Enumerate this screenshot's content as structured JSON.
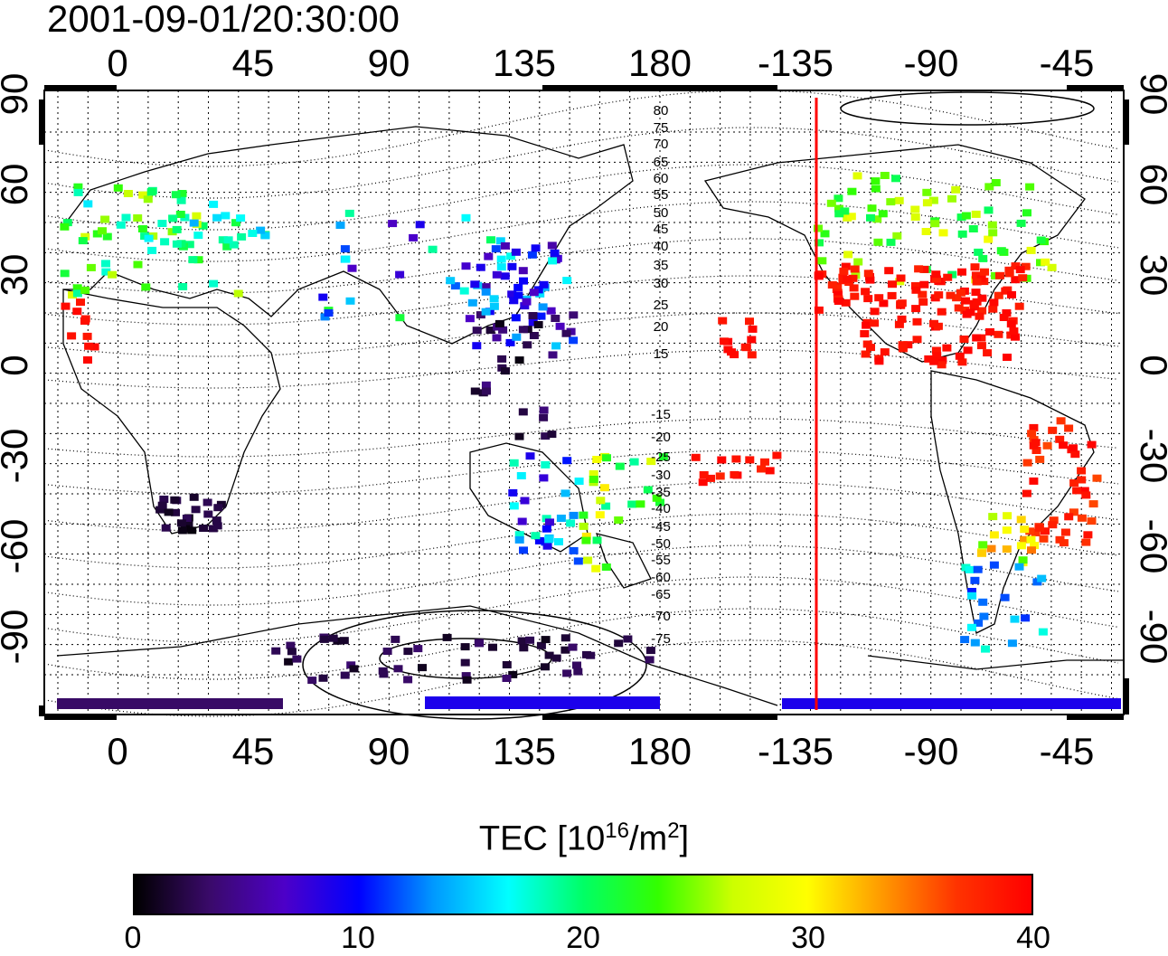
{
  "timestamp": "2001-09-01/20:30:00",
  "map": {
    "lon_ticks_top": [
      "0",
      "45",
      "90",
      "135",
      "180",
      "-135",
      "-90",
      "-45"
    ],
    "lon_ticks_bottom": [
      "0",
      "45",
      "90",
      "135",
      "180",
      "-135",
      "-90",
      "-45"
    ],
    "lat_ticks_left": [
      "90",
      "60",
      "30",
      "0",
      "-30",
      "-60",
      "-90"
    ],
    "lat_ticks_right": [
      "90",
      "60",
      "30",
      "0",
      "-30",
      "-60",
      "-90"
    ],
    "contour_labels": [
      "80",
      "75",
      "70",
      "65",
      "60",
      "55",
      "50",
      "45",
      "40",
      "35",
      "30",
      "25",
      "20",
      "15",
      "-15",
      "-20",
      "-25",
      "-30",
      "-35",
      "-40",
      "-45",
      "-50",
      "-55",
      "-60",
      "-65",
      "-70",
      "-75"
    ],
    "marker_line_color": "#ff0000"
  },
  "colorbar": {
    "title_prefix": "TEC  [10",
    "title_exp1": "16",
    "title_mid": "/m",
    "title_exp2": "2",
    "title_suffix": "]",
    "ticks": [
      "0",
      "10",
      "20",
      "30",
      "40"
    ],
    "range": [
      0,
      40
    ],
    "colors": [
      "#000000",
      "#3a0a6a",
      "#4d00c8",
      "#0000ff",
      "#0099ff",
      "#00ffff",
      "#00ff66",
      "#33ff00",
      "#ccff00",
      "#ffff00",
      "#ff9900",
      "#ff3300",
      "#ff0000"
    ]
  }
}
